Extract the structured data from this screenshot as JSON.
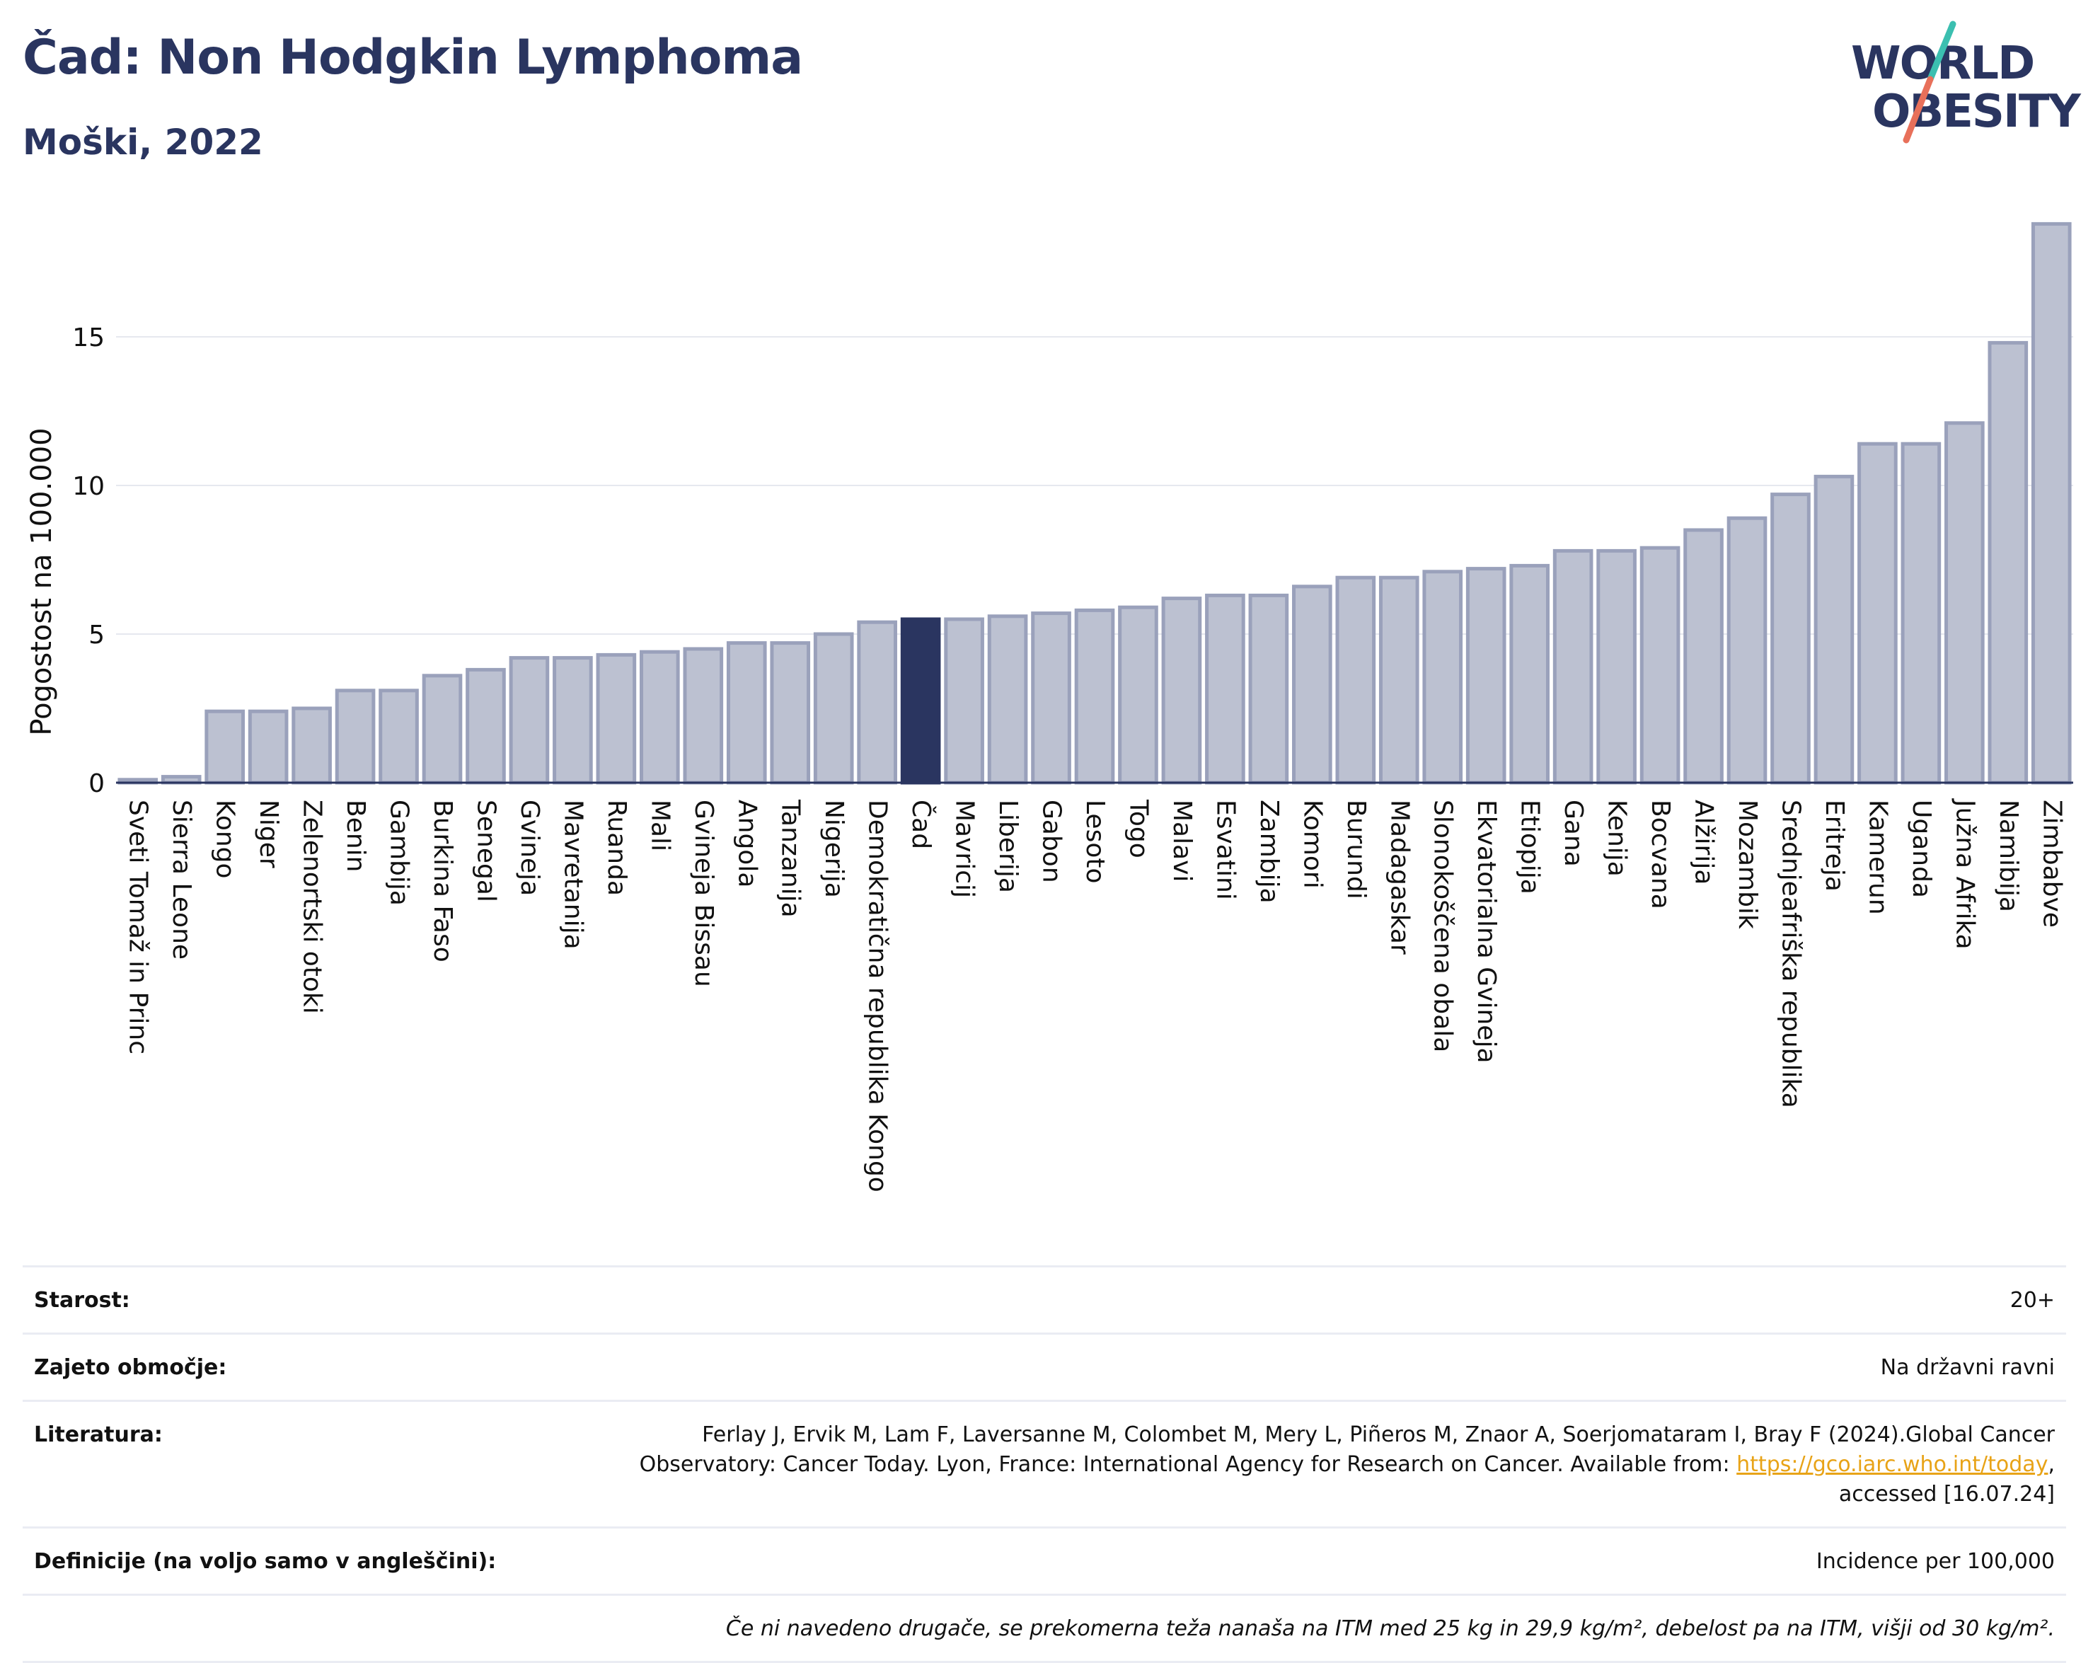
{
  "header": {
    "title": "Čad: Non Hodgkin Lymphoma",
    "subtitle": "Moški, 2022"
  },
  "logo": {
    "line1": "WORLD",
    "line2": "OBESITY",
    "colors": {
      "text": "#2a3560",
      "slash_top": "#3bbfb0",
      "slash_bottom": "#e8705a"
    }
  },
  "chart_data": {
    "type": "bar",
    "ylabel": "Pogostost na 100.000",
    "ylim": [
      0,
      19.5
    ],
    "yticks": [
      0,
      5,
      10,
      15
    ],
    "grid": true,
    "highlight": "Čad",
    "colors": {
      "bar": "#bcc1d1",
      "bar_edge": "#9aa1bb",
      "highlight": "#2a3560"
    },
    "categories": [
      "Sveti Tomaž in Princ",
      "Sierra Leone",
      "Kongo",
      "Niger",
      "Zelenortski otoki",
      "Benin",
      "Gambija",
      "Burkina Faso",
      "Senegal",
      "Gvineja",
      "Mavretanija",
      "Ruanda",
      "Mali",
      "Gvineja Bissau",
      "Angola",
      "Tanzanija",
      "Nigerija",
      "Demokratična republika Kongo",
      "Čad",
      "Mavricij",
      "Liberija",
      "Gabon",
      "Lesoto",
      "Togo",
      "Malavi",
      "Esvatini",
      "Zambija",
      "Komori",
      "Burundi",
      "Madagaskar",
      "Slonokoščena obala",
      "Ekvatorialna Gvineja",
      "Etiopija",
      "Gana",
      "Kenija",
      "Bocvana",
      "Alžirija",
      "Mozambik",
      "Srednjeafriška republika",
      "Eritreja",
      "Kamerun",
      "Uganda",
      "Južna Afrika",
      "Namibija",
      "Zimbabve"
    ],
    "values": [
      0.1,
      0.2,
      2.4,
      2.4,
      2.5,
      3.1,
      3.1,
      3.6,
      3.8,
      4.2,
      4.2,
      4.3,
      4.4,
      4.5,
      4.7,
      4.7,
      5.0,
      5.4,
      5.5,
      5.5,
      5.6,
      5.7,
      5.8,
      5.9,
      6.2,
      6.3,
      6.3,
      6.6,
      6.9,
      6.9,
      7.1,
      7.2,
      7.3,
      7.8,
      7.8,
      7.9,
      8.5,
      8.9,
      9.7,
      10.3,
      11.4,
      11.4,
      12.1,
      14.8,
      18.8
    ]
  },
  "info": {
    "rows": [
      {
        "label": "Starost:",
        "value": "20+"
      },
      {
        "label": "Zajeto območje:",
        "value": "Na državni ravni"
      },
      {
        "label": "Literatura:",
        "value_line1": "Ferlay J, Ervik M, Lam F, Laversanne M, Colombet M, Mery L, Piñeros M, Znaor A, Soerjomataram I, Bray F (2024).Global Cancer",
        "value_line2": "Observatory: Cancer Today. Lyon, France: International Agency for Research on Cancer. Available from: ",
        "link": "https://gco.iarc.who.int/today",
        "value_line2_end": ",",
        "value_line3": "accessed [16.07.24]"
      },
      {
        "label": "Definicije (na voljo samo v angleščini):",
        "value": "Incidence per 100,000"
      }
    ],
    "footnote": "Če ni navedeno drugače, se prekomerna teža nanaša na ITM med 25 kg in 29,9 kg/m², debelost pa na ITM, višji od 30 kg/m²."
  }
}
